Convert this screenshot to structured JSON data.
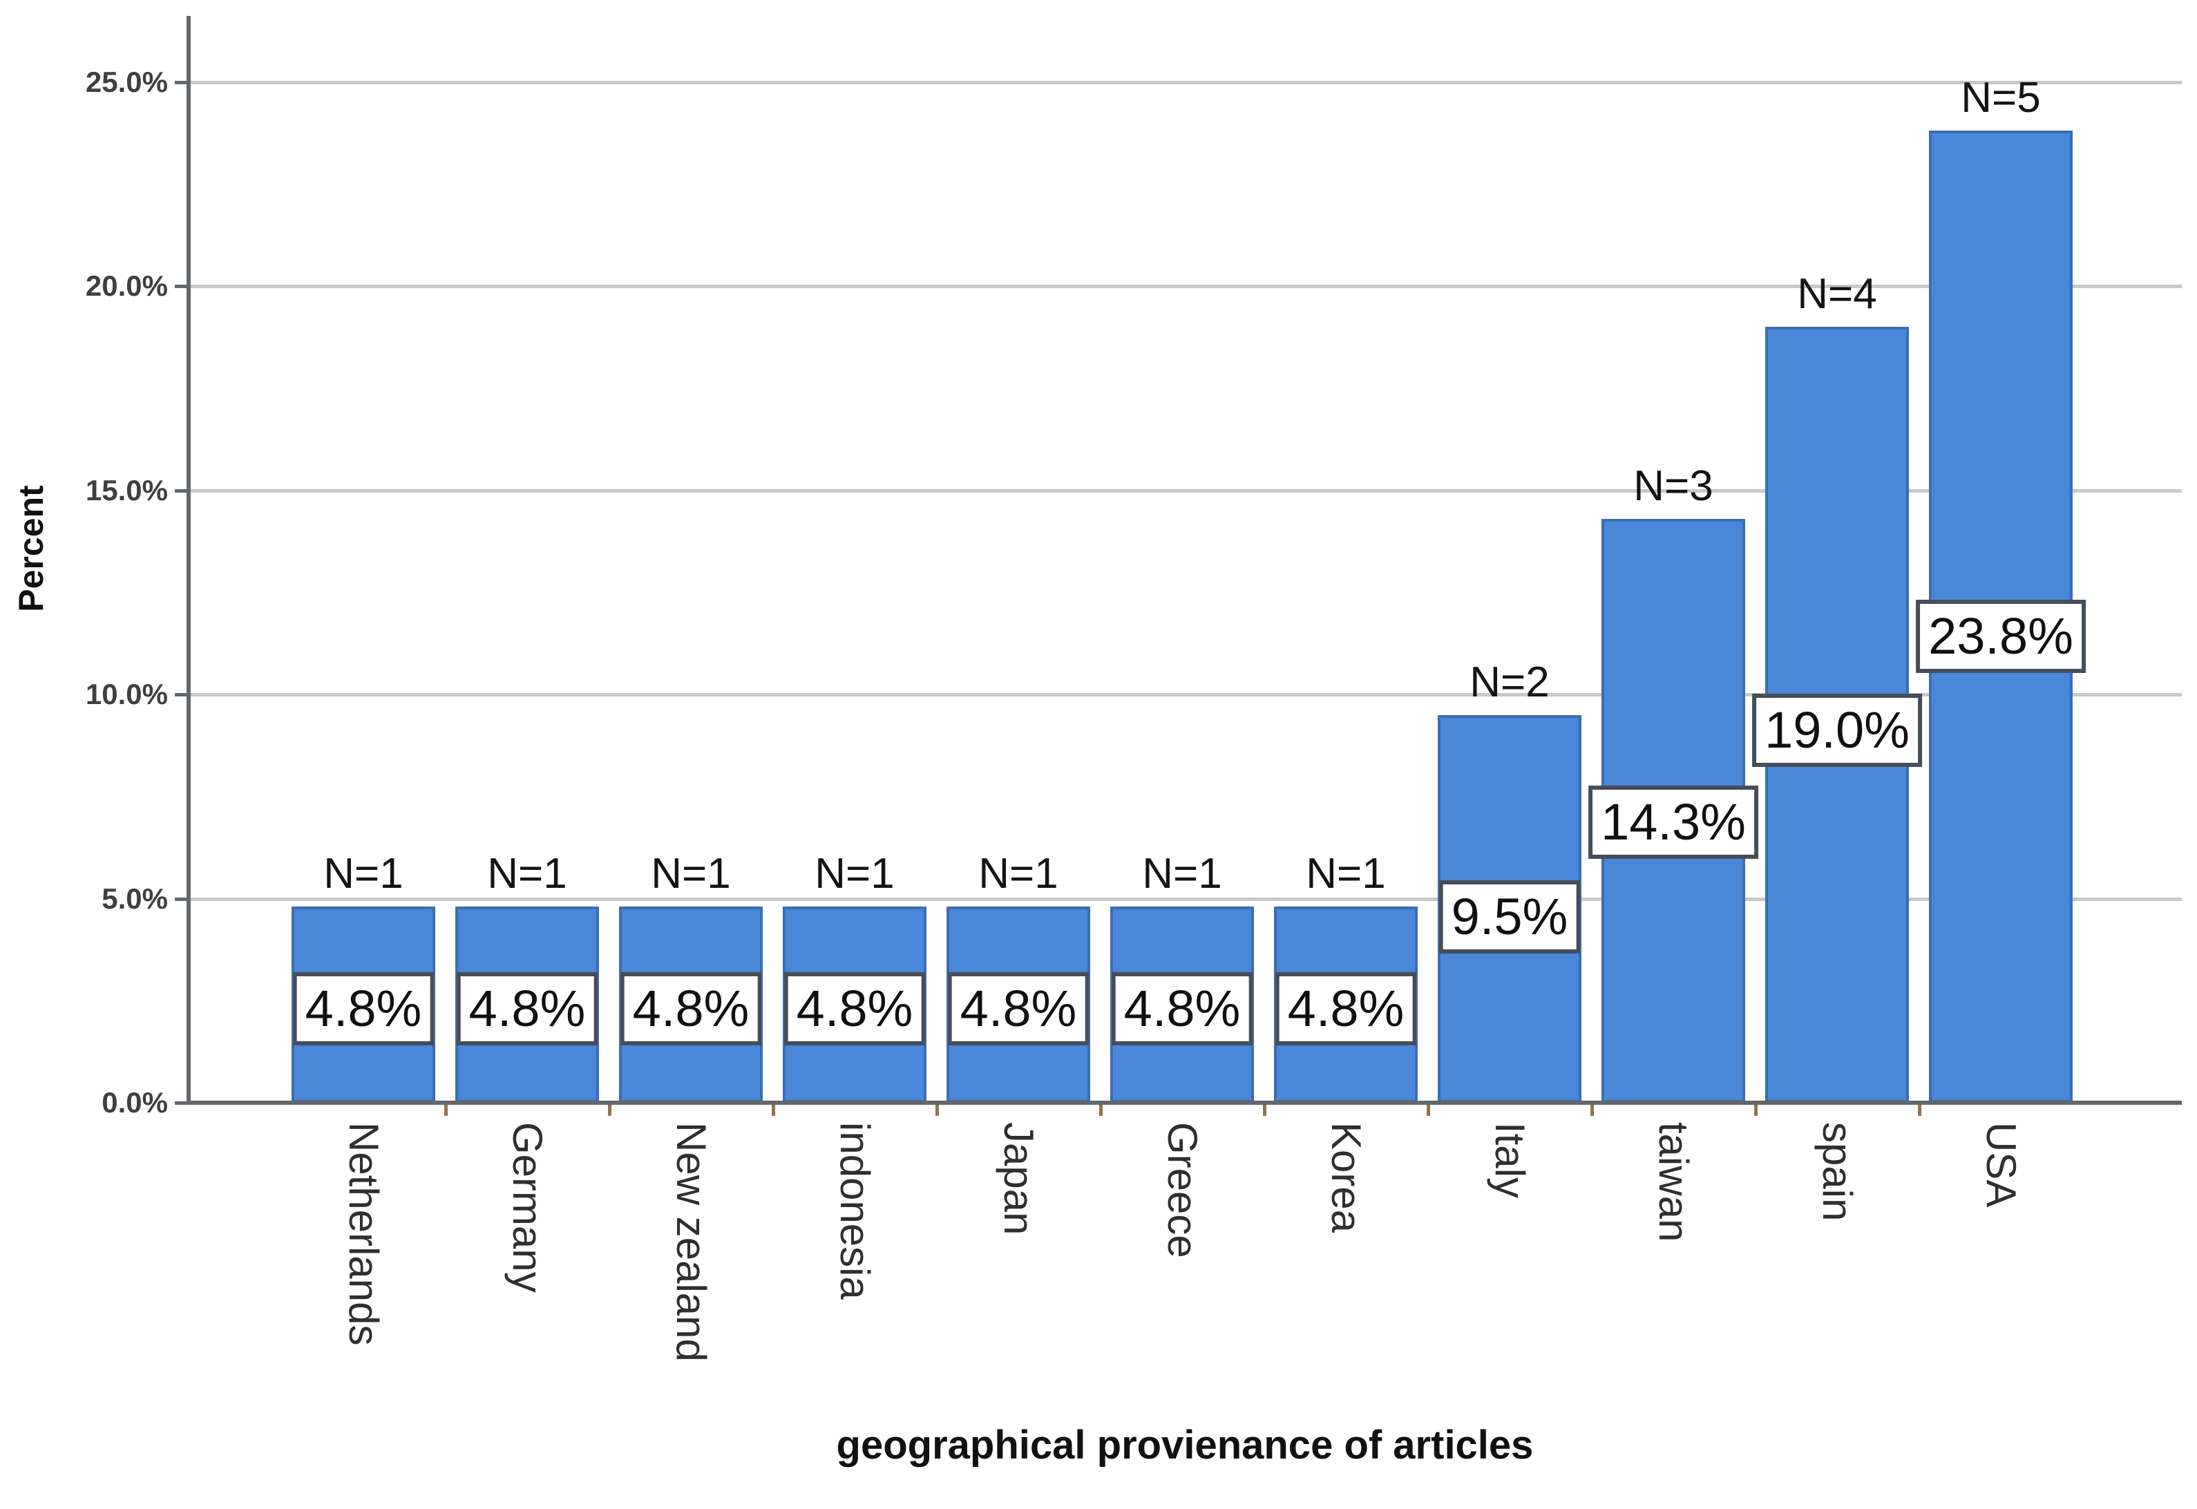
{
  "chart_data": {
    "type": "bar",
    "title": "",
    "xlabel": "geographical provienance of articles",
    "ylabel": "Percent",
    "categories": [
      "Netherlands",
      "Germany",
      "New zealand",
      "indonesia",
      "Japan",
      "Greece",
      "Korea",
      "Italy",
      "taiwan",
      "spain",
      "USA"
    ],
    "values": [
      4.8,
      4.8,
      4.8,
      4.8,
      4.8,
      4.8,
      4.8,
      9.5,
      14.3,
      19.0,
      23.8
    ],
    "value_labels": [
      "4.8%",
      "4.8%",
      "4.8%",
      "4.8%",
      "4.8%",
      "4.8%",
      "4.8%",
      "9.5%",
      "14.3%",
      "19.0%",
      "23.8%"
    ],
    "counts": [
      1,
      1,
      1,
      1,
      1,
      1,
      1,
      2,
      3,
      4,
      5
    ],
    "count_labels": [
      "N=1",
      "N=1",
      "N=1",
      "N=1",
      "N=1",
      "N=1",
      "N=1",
      "N=2",
      "N=3",
      "N=4",
      "N=5"
    ],
    "ylim": [
      0,
      25
    ],
    "yticks": [
      {
        "value": 0,
        "label": "0.0%"
      },
      {
        "value": 5,
        "label": "5.0%"
      },
      {
        "value": 10,
        "label": "10.0%"
      },
      {
        "value": 15,
        "label": "15.0%"
      },
      {
        "value": 20,
        "label": "20.0%"
      },
      {
        "value": 25,
        "label": "25.0%"
      }
    ],
    "grid": "horizontal",
    "legend": "none",
    "colors": {
      "bar_fill": "#4b87d9",
      "bar_border": "#3a6db4",
      "gridline": "#c8c8c8",
      "axis_line": "#63676b",
      "ytick_label": "#3f3f3f",
      "value_box_border": "#454e58",
      "value_text": "#101010",
      "xtick_mark": "#8f7353",
      "category_label": "#2f2f2f"
    }
  }
}
